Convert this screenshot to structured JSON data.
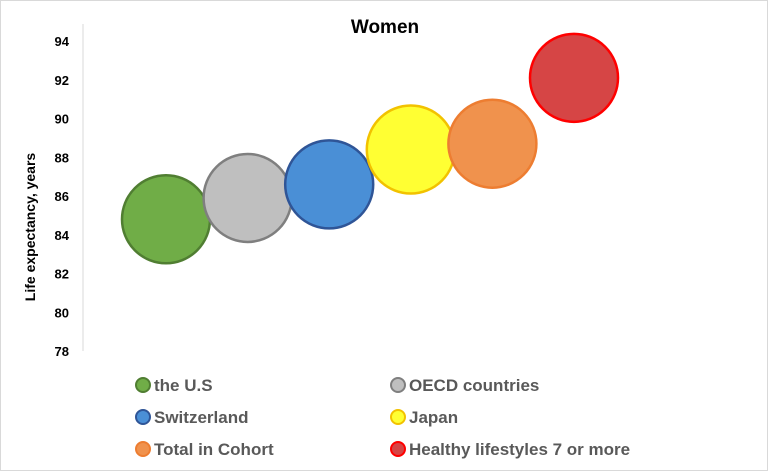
{
  "chart_data": {
    "type": "scatter",
    "title": "Women",
    "xlabel": "",
    "ylabel": "Life expectancy, years",
    "ylim": [
      78,
      94
    ],
    "yticks": [
      78,
      80,
      82,
      84,
      86,
      88,
      90,
      92,
      94
    ],
    "grid": false,
    "legend_position": "bottom",
    "series": [
      {
        "name": "the U.S",
        "x": 1,
        "y": 84.8,
        "fill": "#70ad47",
        "stroke": "#507e32"
      },
      {
        "name": "OECD countries",
        "x": 2,
        "y": 85.9,
        "fill": "#bfbfbf",
        "stroke": "#7f7f7f"
      },
      {
        "name": "Switzerland",
        "x": 3,
        "y": 86.6,
        "fill": "#4a8fd6",
        "stroke": "#2f5597"
      },
      {
        "name": "Japan",
        "x": 4,
        "y": 88.4,
        "fill": "#ffff33",
        "stroke": "#f2c200"
      },
      {
        "name": "Total in Cohort",
        "x": 5,
        "y": 88.7,
        "fill": "#f0924d",
        "stroke": "#ed7d31"
      },
      {
        "name": "Healthy lifestyles 7 or more",
        "x": 6,
        "y": 92.1,
        "fill": "#d64545",
        "stroke": "#ff0000"
      }
    ]
  }
}
